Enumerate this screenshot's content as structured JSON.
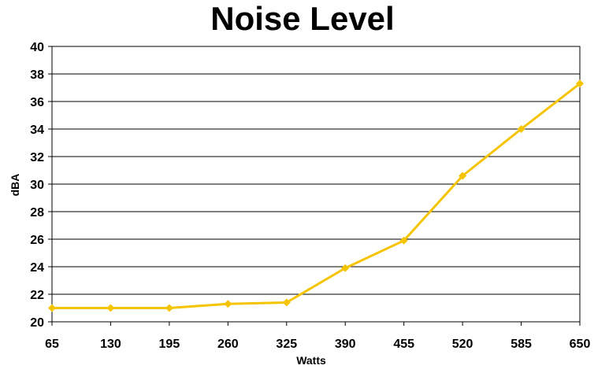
{
  "chart_data": {
    "type": "line",
    "title": "Noise Level",
    "xlabel": "Watts",
    "ylabel": "dBA",
    "categories": [
      "65",
      "130",
      "195",
      "260",
      "325",
      "390",
      "455",
      "520",
      "585",
      "650"
    ],
    "series": [
      {
        "values": [
          21.0,
          21.0,
          21.0,
          21.3,
          21.4,
          23.9,
          25.9,
          30.6,
          34.0,
          37.3
        ],
        "color": "#F5C400"
      }
    ],
    "ylim": [
      20,
      40
    ],
    "yticks": [
      "20",
      "22",
      "24",
      "26",
      "28",
      "30",
      "32",
      "34",
      "36",
      "38",
      "40"
    ],
    "grid": true,
    "legend": "none",
    "marker": "diamond"
  }
}
